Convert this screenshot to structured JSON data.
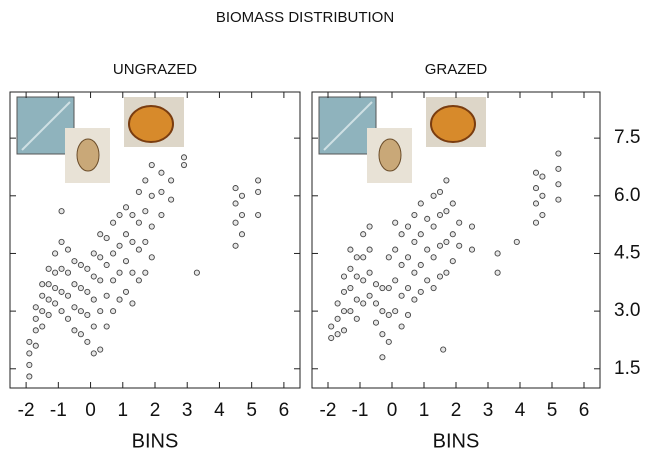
{
  "title": "BIOMASS DISTRIBUTION",
  "chart_data": [
    {
      "type": "scatter",
      "title": "UNGRAZED",
      "x_label": "BINS",
      "xlim": [
        -2.5,
        6.5
      ],
      "xticks": [
        -2,
        -1,
        0,
        1,
        2,
        3,
        4,
        5,
        6
      ],
      "ylim": [
        1.0,
        8.7
      ],
      "yticks": [
        1.5,
        {
          "value": 3,
          "label": "3.0"
        },
        4.5,
        {
          "value": 6,
          "label": "6.0"
        },
        7.5
      ],
      "ytick_labels": "none",
      "marker_color": "#444",
      "x": [
        -1.9,
        -1.9,
        -1.9,
        -1.9,
        -1.7,
        -1.7,
        -1.7,
        -1.7,
        -1.5,
        -1.5,
        -1.5,
        -1.5,
        -1.3,
        -1.3,
        -1.3,
        -1.3,
        -1.1,
        -1.1,
        -1.1,
        -1.1,
        -0.9,
        -0.9,
        -0.9,
        -0.9,
        -0.9,
        -0.7,
        -0.7,
        -0.7,
        -0.7,
        -0.5,
        -0.5,
        -0.5,
        -0.5,
        -0.3,
        -0.3,
        -0.3,
        -0.3,
        -0.1,
        -0.1,
        -0.1,
        -0.1,
        0.1,
        0.1,
        0.1,
        0.1,
        0.1,
        0.3,
        0.3,
        0.3,
        0.3,
        0.3,
        0.5,
        0.5,
        0.5,
        0.5,
        0.7,
        0.7,
        0.7,
        0.7,
        0.9,
        0.9,
        0.9,
        0.9,
        1.1,
        1.1,
        1.1,
        1.1,
        1.3,
        1.3,
        1.3,
        1.3,
        1.5,
        1.5,
        1.5,
        1.5,
        1.7,
        1.7,
        1.7,
        1.7,
        1.9,
        1.9,
        1.9,
        1.9,
        2.2,
        2.2,
        2.2,
        2.5,
        2.5,
        2.9,
        2.9,
        3.3,
        4.5,
        4.5,
        4.5,
        4.5,
        4.7,
        4.7,
        4.7,
        5.2,
        5.2,
        5.2
      ],
      "y": [
        1.3,
        1.6,
        1.9,
        2.2,
        2.1,
        2.5,
        2.8,
        3.1,
        2.6,
        3.0,
        3.4,
        3.7,
        2.9,
        3.3,
        3.7,
        4.1,
        3.2,
        3.6,
        4.0,
        4.5,
        3.0,
        3.5,
        4.1,
        4.8,
        5.6,
        2.8,
        3.4,
        4.0,
        4.6,
        2.5,
        3.1,
        3.7,
        4.3,
        2.4,
        3.0,
        3.6,
        4.2,
        2.2,
        2.9,
        3.5,
        4.1,
        1.9,
        2.6,
        3.3,
        3.9,
        4.5,
        2.0,
        3.0,
        3.8,
        4.4,
        5.0,
        2.6,
        3.4,
        4.2,
        4.9,
        3.0,
        3.8,
        4.5,
        5.3,
        3.3,
        4.0,
        4.7,
        5.5,
        3.5,
        4.3,
        5.0,
        5.7,
        3.2,
        4.0,
        4.8,
        5.5,
        3.8,
        4.6,
        5.3,
        6.1,
        4.0,
        4.8,
        5.6,
        6.4,
        4.4,
        5.2,
        6.0,
        6.8,
        5.5,
        6.1,
        6.6,
        5.9,
        6.4,
        6.8,
        7.0,
        4.0,
        4.7,
        5.3,
        5.8,
        6.2,
        5.0,
        5.5,
        6.0,
        5.5,
        6.1,
        6.4
      ]
    },
    {
      "type": "scatter",
      "title": "GRAZED",
      "x_label": "BINS",
      "xlim": [
        -2.5,
        6.5
      ],
      "xticks": [
        -2,
        -1,
        0,
        1,
        2,
        3,
        4,
        5,
        6
      ],
      "ylim": [
        1.0,
        8.7
      ],
      "yticks": [
        1.5,
        {
          "value": 3,
          "label": "3.0"
        },
        4.5,
        {
          "value": 6,
          "label": "6.0"
        },
        7.5
      ],
      "ytick_labels": "right",
      "marker_color": "#444",
      "x": [
        -1.9,
        -1.9,
        -1.7,
        -1.7,
        -1.7,
        -1.5,
        -1.5,
        -1.5,
        -1.5,
        -1.3,
        -1.3,
        -1.3,
        -1.3,
        -1.1,
        -1.1,
        -1.1,
        -1.1,
        -0.9,
        -0.9,
        -0.9,
        -0.9,
        -0.7,
        -0.7,
        -0.7,
        -0.7,
        -0.5,
        -0.5,
        -0.5,
        -0.3,
        -0.3,
        -0.3,
        -0.3,
        -0.1,
        -0.1,
        -0.1,
        -0.1,
        0.1,
        0.1,
        0.1,
        0.1,
        0.3,
        0.3,
        0.3,
        0.3,
        0.5,
        0.5,
        0.5,
        0.5,
        0.7,
        0.7,
        0.7,
        0.7,
        0.9,
        0.9,
        0.9,
        0.9,
        1.1,
        1.1,
        1.1,
        1.3,
        1.3,
        1.3,
        1.3,
        1.5,
        1.5,
        1.5,
        1.5,
        1.7,
        1.7,
        1.7,
        1.7,
        1.9,
        1.9,
        1.9,
        2.1,
        2.1,
        2.5,
        2.5,
        1.6,
        3.3,
        3.3,
        3.9,
        4.5,
        4.5,
        4.5,
        4.5,
        4.7,
        4.7,
        4.7,
        5.2,
        5.2,
        5.2,
        5.2
      ],
      "y": [
        2.3,
        2.6,
        2.4,
        2.8,
        3.2,
        2.5,
        3.0,
        3.5,
        3.9,
        3.0,
        3.6,
        4.1,
        4.6,
        2.8,
        3.3,
        3.9,
        4.4,
        3.2,
        3.8,
        4.4,
        5.0,
        3.4,
        4.0,
        4.6,
        5.2,
        2.7,
        3.2,
        3.7,
        1.8,
        2.4,
        3.0,
        3.6,
        2.2,
        2.9,
        3.6,
        4.4,
        3.0,
        3.8,
        4.6,
        5.3,
        2.6,
        3.4,
        4.2,
        5.0,
        2.9,
        3.6,
        4.4,
        5.2,
        3.3,
        4.0,
        4.8,
        5.5,
        3.5,
        4.2,
        5.0,
        5.8,
        3.8,
        4.6,
        5.4,
        3.6,
        4.4,
        5.2,
        6.0,
        3.9,
        4.7,
        5.5,
        6.1,
        4.0,
        4.8,
        5.6,
        6.4,
        4.3,
        5.0,
        5.8,
        4.7,
        5.3,
        4.6,
        5.2,
        2.0,
        4.0,
        4.5,
        4.8,
        5.3,
        5.8,
        6.2,
        6.6,
        5.5,
        6.0,
        6.5,
        5.9,
        6.3,
        6.7,
        7.1
      ]
    }
  ]
}
